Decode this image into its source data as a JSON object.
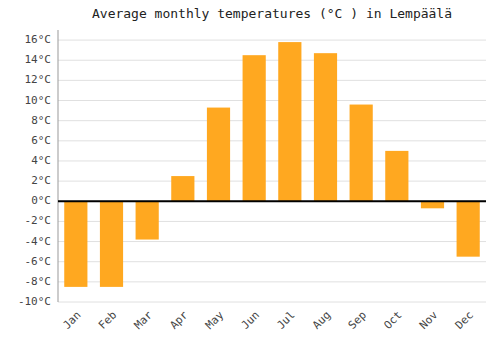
{
  "chart_data": {
    "type": "bar",
    "title": "Average monthly temperatures (°C ) in Lempäälä",
    "categories": [
      "Jan",
      "Feb",
      "Mar",
      "Apr",
      "May",
      "Jun",
      "Jul",
      "Aug",
      "Sep",
      "Oct",
      "Nov",
      "Dec"
    ],
    "values": [
      -8.5,
      -8.5,
      -3.8,
      2.5,
      9.3,
      14.5,
      15.8,
      14.7,
      9.6,
      5.0,
      -0.7,
      -5.5
    ],
    "color": "#FFA820",
    "ylim": [
      -10,
      17
    ],
    "yticks": [
      {
        "value": -10,
        "label": "-10°C"
      },
      {
        "value": -8,
        "label": "-8°C"
      },
      {
        "value": -6,
        "label": "-6°C"
      },
      {
        "value": -4,
        "label": "-4°C"
      },
      {
        "value": -2,
        "label": "-2°C"
      },
      {
        "value": 0,
        "label": "0°C"
      },
      {
        "value": 2,
        "label": "2°C"
      },
      {
        "value": 4,
        "label": "4°C"
      },
      {
        "value": 6,
        "label": "6°C"
      },
      {
        "value": 8,
        "label": "8°C"
      },
      {
        "value": 10,
        "label": "10°C"
      },
      {
        "value": 12,
        "label": "12°C"
      },
      {
        "value": 14,
        "label": "14°C"
      },
      {
        "value": 16,
        "label": "16°C"
      }
    ],
    "grid": true
  }
}
